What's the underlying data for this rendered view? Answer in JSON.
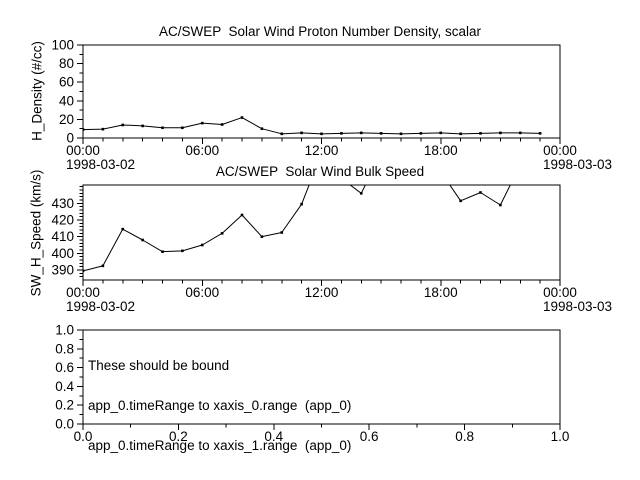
{
  "app": {
    "background_color": "#ffffff",
    "foreground_color": "#000000",
    "line_color": "#000000"
  },
  "chart_data": [
    {
      "type": "line",
      "title": "AC/SWEP  Solar Wind Proton Number Density, scalar",
      "ylabel": "H_Density (#/cc)",
      "xlabel": "",
      "x_unit": "hours from 1998-03-02 00:00",
      "xlim": [
        0,
        24
      ],
      "ylim": [
        0,
        100
      ],
      "grid": false,
      "marker": "filled-square",
      "x": [
        0,
        1,
        2,
        3,
        4,
        5,
        6,
        7,
        8,
        9,
        10,
        11,
        12,
        13,
        14,
        15,
        16,
        17,
        18,
        19,
        20,
        21,
        22,
        23
      ],
      "values": [
        9,
        9.5,
        14,
        13,
        11,
        11,
        16,
        14.5,
        22,
        10,
        4.5,
        5.5,
        4.5,
        5,
        5.5,
        5,
        4.5,
        5,
        5.5,
        4.5,
        5,
        5.5,
        5.5,
        5
      ],
      "xticks": [
        {
          "pos": 0,
          "label": "00:00"
        },
        {
          "pos": 6,
          "label": "06:00"
        },
        {
          "pos": 12,
          "label": "12:00"
        },
        {
          "pos": 18,
          "label": "18:00"
        },
        {
          "pos": 24,
          "label": "00:00"
        }
      ],
      "xminor_step": 1,
      "yticks": [
        {
          "pos": 0,
          "label": "0"
        },
        {
          "pos": 20,
          "label": "20"
        },
        {
          "pos": 40,
          "label": "40"
        },
        {
          "pos": 60,
          "label": "60"
        },
        {
          "pos": 80,
          "label": "80"
        },
        {
          "pos": 100,
          "label": "100"
        }
      ],
      "yminor_step": 10,
      "date_label_left": "1998-03-02",
      "date_label_right": "1998-03-03"
    },
    {
      "type": "line",
      "title": "AC/SWEP  Solar Wind Bulk Speed",
      "ylabel": "SW_H_Speed (km/s)",
      "xlabel": "",
      "x_unit": "hours from 1998-03-02 00:00",
      "xlim": [
        0,
        24
      ],
      "ylim": [
        384,
        441
      ],
      "grid": false,
      "marker": "filled-square",
      "x": [
        0,
        1,
        2,
        3,
        4,
        5,
        6,
        7,
        8,
        9,
        10,
        11,
        12,
        13,
        14,
        15,
        16,
        17,
        18,
        19,
        20,
        21,
        22,
        23
      ],
      "values": [
        389.5,
        392.5,
        414.5,
        408,
        401,
        401.5,
        405,
        412,
        423,
        410,
        412.5,
        429.5,
        460,
        445,
        436,
        460,
        470,
        468,
        449,
        431.5,
        436.5,
        429,
        453,
        455
      ],
      "clipped_above_ymax_hours": [
        12,
        13,
        15,
        16,
        17,
        18,
        22,
        23
      ],
      "xticks": [
        {
          "pos": 0,
          "label": "00:00"
        },
        {
          "pos": 6,
          "label": "06:00"
        },
        {
          "pos": 12,
          "label": "12:00"
        },
        {
          "pos": 18,
          "label": "18:00"
        },
        {
          "pos": 24,
          "label": "00:00"
        }
      ],
      "xminor_step": 1,
      "yticks": [
        {
          "pos": 390,
          "label": "390"
        },
        {
          "pos": 400,
          "label": "400"
        },
        {
          "pos": 410,
          "label": "410"
        },
        {
          "pos": 420,
          "label": "420"
        },
        {
          "pos": 430,
          "label": "430"
        }
      ],
      "yminor_step": 2,
      "date_label_left": "1998-03-02",
      "date_label_right": "1998-03-03"
    },
    {
      "type": "line",
      "title": "",
      "ylabel": "",
      "xlabel": "",
      "xlim": [
        0,
        1
      ],
      "ylim": [
        0,
        1
      ],
      "grid": false,
      "marker": "none",
      "x": [],
      "values": [],
      "xticks": [
        {
          "pos": 0,
          "label": "0.0"
        },
        {
          "pos": 0.2,
          "label": "0.2"
        },
        {
          "pos": 0.4,
          "label": "0.4"
        },
        {
          "pos": 0.6,
          "label": "0.6"
        },
        {
          "pos": 0.8,
          "label": "0.8"
        },
        {
          "pos": 1,
          "label": "1.0"
        }
      ],
      "xminor_step": 0.1,
      "yticks": [
        {
          "pos": 0,
          "label": "0.0"
        },
        {
          "pos": 0.2,
          "label": "0.2"
        },
        {
          "pos": 0.4,
          "label": "0.4"
        },
        {
          "pos": 0.6,
          "label": "0.6"
        },
        {
          "pos": 0.8,
          "label": "0.8"
        },
        {
          "pos": 1,
          "label": "1.0"
        }
      ],
      "yminor_step": 0.1,
      "annotation_lines": [
        "These should be bound",
        "app_0.timeRange to xaxis_0.range  (app_0)",
        "app_0.timeRange to xaxis_1.range  (app_0)"
      ]
    }
  ]
}
